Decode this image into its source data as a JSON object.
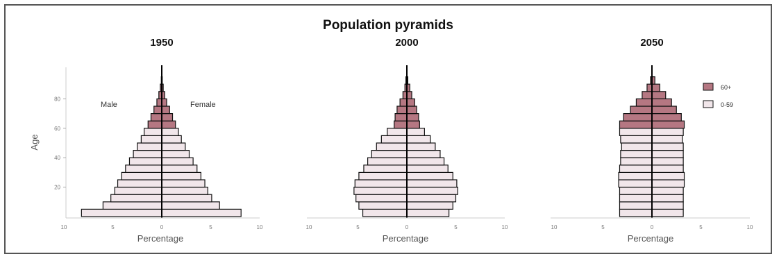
{
  "title": "Population pyramids",
  "colors": {
    "old": "#b57782",
    "young": "#f1e6ea",
    "stroke": "#111111"
  },
  "legend": {
    "old_label": "60+",
    "young_label": "0-59"
  },
  "chart_data": {
    "type": "bar",
    "orientation": "horizontal-pyramid",
    "ylabel": "Age",
    "xlabel": "Percentage",
    "xlim": [
      -10,
      10
    ],
    "x_ticks": [
      "10",
      "5",
      "0",
      "5",
      "10"
    ],
    "y_ticks": [
      "20",
      "40",
      "60",
      "80"
    ],
    "age_groups": [
      "0-4",
      "5-9",
      "10-14",
      "15-19",
      "20-24",
      "25-29",
      "30-34",
      "35-39",
      "40-44",
      "45-49",
      "50-54",
      "55-59",
      "60-64",
      "65-69",
      "70-74",
      "75-79",
      "80-84",
      "85-89",
      "90+"
    ],
    "annotations": {
      "male": "Male",
      "female": "Female"
    },
    "panels": [
      {
        "title": "1950",
        "male": [
          8.2,
          6.0,
          5.2,
          4.8,
          4.5,
          4.1,
          3.7,
          3.3,
          2.9,
          2.5,
          2.1,
          1.8,
          1.4,
          1.1,
          0.8,
          0.5,
          0.3,
          0.15,
          0.05
        ],
        "female": [
          8.1,
          5.9,
          5.1,
          4.7,
          4.4,
          4.0,
          3.6,
          3.2,
          2.8,
          2.4,
          2.0,
          1.7,
          1.4,
          1.1,
          0.8,
          0.5,
          0.3,
          0.15,
          0.05
        ]
      },
      {
        "title": "2000",
        "male": [
          4.5,
          4.9,
          5.2,
          5.4,
          5.3,
          4.9,
          4.4,
          4.0,
          3.6,
          3.1,
          2.6,
          2.0,
          1.3,
          1.2,
          1.0,
          0.7,
          0.4,
          0.2,
          0.1
        ],
        "female": [
          4.3,
          4.7,
          5.0,
          5.2,
          5.1,
          4.7,
          4.2,
          3.8,
          3.4,
          2.9,
          2.4,
          1.8,
          1.3,
          1.2,
          1.0,
          0.8,
          0.5,
          0.3,
          0.1
        ]
      },
      {
        "title": "2050",
        "male": [
          3.3,
          3.3,
          3.3,
          3.3,
          3.4,
          3.4,
          3.3,
          3.2,
          3.2,
          3.1,
          3.2,
          3.3,
          3.3,
          2.9,
          2.2,
          1.6,
          1.0,
          0.5,
          0.15
        ],
        "female": [
          3.2,
          3.2,
          3.2,
          3.2,
          3.3,
          3.3,
          3.2,
          3.2,
          3.2,
          3.2,
          3.1,
          3.2,
          3.3,
          3.0,
          2.5,
          2.0,
          1.4,
          0.8,
          0.3
        ]
      }
    ]
  }
}
